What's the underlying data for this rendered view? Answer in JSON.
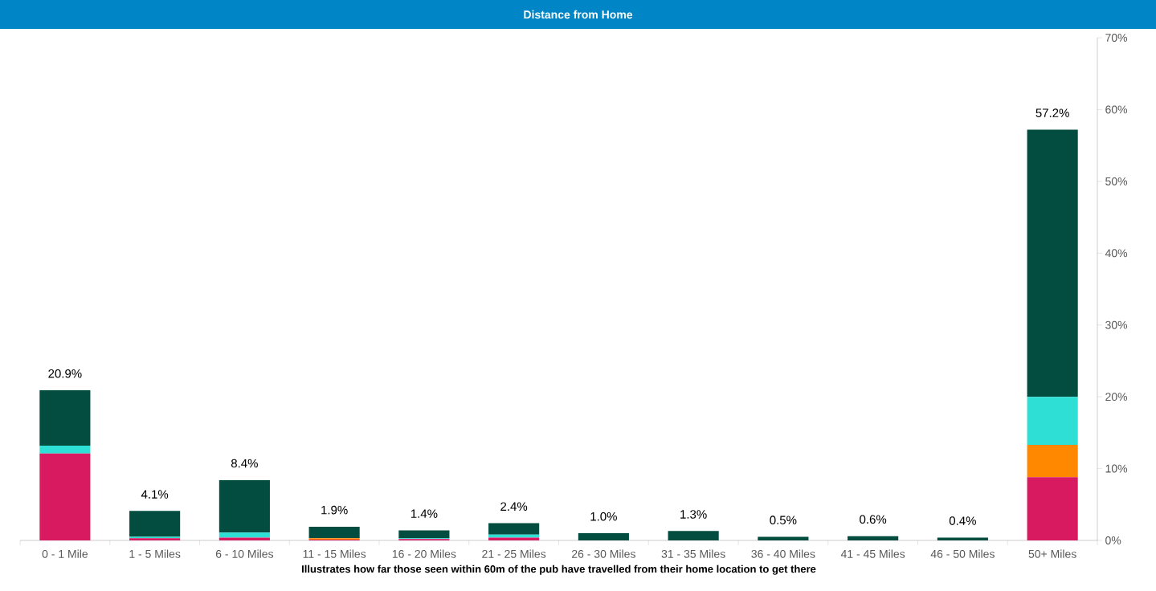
{
  "chart_data": {
    "type": "bar",
    "title": "Distance from Home",
    "xlabel": "Illustrates how far those seen within 60m of the pub have travelled from their home location to get there",
    "categories": [
      "0 - 1 Mile",
      "1 - 5 Miles",
      "6 - 10 Miles",
      "11 - 15 Miles",
      "16 - 20 Miles",
      "21 - 25 Miles",
      "26 - 30 Miles",
      "31 - 35 Miles",
      "36 - 40 Miles",
      "41 - 45 Miles",
      "46 - 50 Miles",
      "50+ Miles"
    ],
    "stacked": true,
    "series": [
      {
        "color": "#d81b60",
        "values": [
          12.1,
          0.3,
          0.4,
          0.1,
          0.2,
          0.4,
          0,
          0,
          0,
          0,
          0,
          8.8
        ]
      },
      {
        "color": "#ff8800",
        "values": [
          0,
          0,
          0,
          0.2,
          0,
          0,
          0,
          0,
          0,
          0,
          0,
          4.5
        ]
      },
      {
        "color": "#2ddfd5",
        "values": [
          1.1,
          0.2,
          0.7,
          0,
          0.1,
          0.4,
          0,
          0,
          0,
          0,
          0,
          6.7
        ]
      },
      {
        "color": "#024d40",
        "values": [
          7.7,
          3.6,
          7.3,
          1.6,
          1.1,
          1.6,
          1.0,
          1.3,
          0.5,
          0.6,
          0.4,
          37.2
        ]
      }
    ],
    "totals": [
      "20.9%",
      "4.1%",
      "8.4%",
      "1.9%",
      "1.4%",
      "2.4%",
      "1.0%",
      "1.3%",
      "0.5%",
      "0.6%",
      "0.4%",
      "57.2%"
    ],
    "ylim": [
      0,
      70
    ],
    "yticks": [
      {
        "value": 0,
        "label": "0%"
      },
      {
        "value": 10,
        "label": "10%"
      },
      {
        "value": 20,
        "label": "20%"
      },
      {
        "value": 30,
        "label": "30%"
      },
      {
        "value": 40,
        "label": "40%"
      },
      {
        "value": 50,
        "label": "50%"
      },
      {
        "value": 60,
        "label": "60%"
      },
      {
        "value": 70,
        "label": "70%"
      }
    ],
    "grid": false
  }
}
